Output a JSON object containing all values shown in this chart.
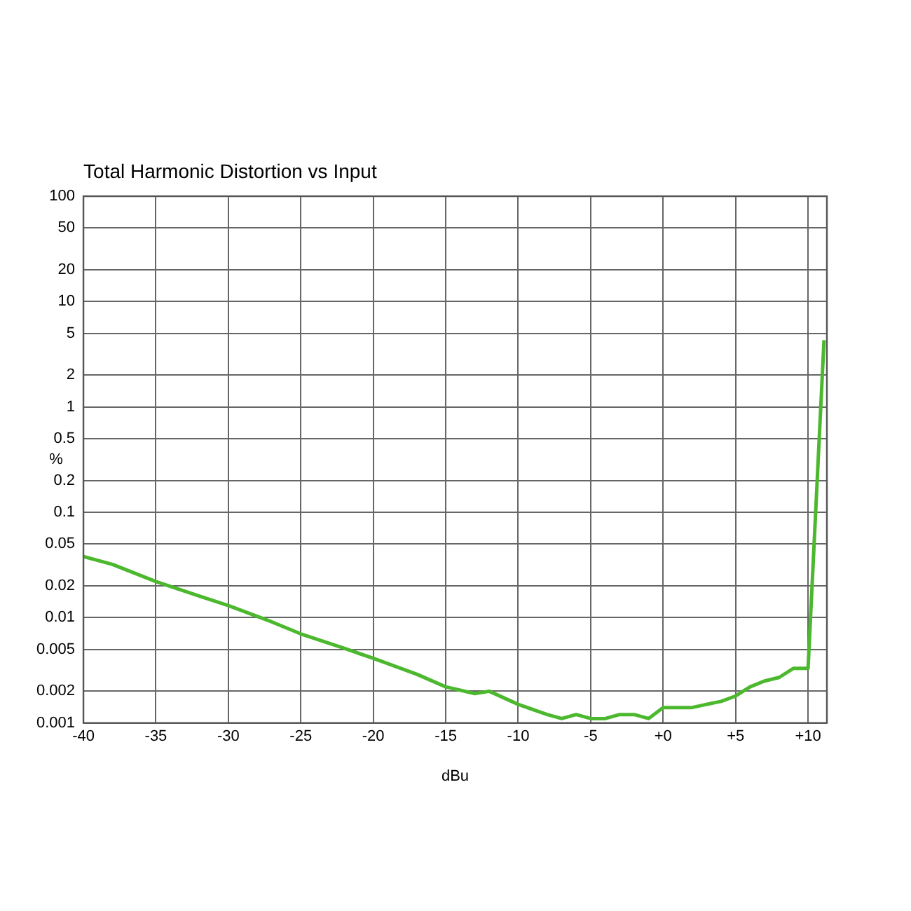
{
  "chart_data": {
    "type": "line",
    "title": "Total Harmonic Distortion vs Input",
    "xlabel": "dBu",
    "ylabel": "%",
    "x": [
      -40,
      -38,
      -35,
      -32,
      -30,
      -27,
      -25,
      -22,
      -20,
      -17,
      -15,
      -13,
      -12,
      -10,
      -8,
      -7,
      -6,
      -5,
      -4,
      -3,
      -2,
      -1,
      0,
      1,
      2,
      3,
      4,
      5,
      6,
      7,
      8,
      9,
      10,
      11.1
    ],
    "series": [
      {
        "color": "#4cb82e",
        "values": [
          0.038,
          0.032,
          0.022,
          0.016,
          0.013,
          0.0091,
          0.007,
          0.0051,
          0.0041,
          0.0029,
          0.0022,
          0.0019,
          0.002,
          0.0015,
          0.0012,
          0.0011,
          0.0012,
          0.0011,
          0.0011,
          0.0012,
          0.0012,
          0.0011,
          0.0014,
          0.0014,
          0.0014,
          0.0015,
          0.0016,
          0.0018,
          0.0022,
          0.0025,
          0.0027,
          0.0033,
          0.0033,
          4.3
        ]
      }
    ],
    "log": "y",
    "xlim": [
      -40,
      11.3
    ],
    "ylim": [
      0.001,
      100
    ],
    "xticks": [
      -40,
      -35,
      -30,
      -25,
      -20,
      -15,
      -10,
      -5,
      {
        "value": 0,
        "label": "+0"
      },
      {
        "value": 5,
        "label": "+5"
      },
      {
        "value": 10,
        "label": "+10"
      }
    ],
    "yticks": [
      0.001,
      0.002,
      0.005,
      0.01,
      0.02,
      0.05,
      0.1,
      0.2,
      0.5,
      1,
      2,
      5,
      10,
      20,
      50,
      100
    ],
    "grid": true,
    "legend": false,
    "marker": "none",
    "line_style": "solid"
  }
}
